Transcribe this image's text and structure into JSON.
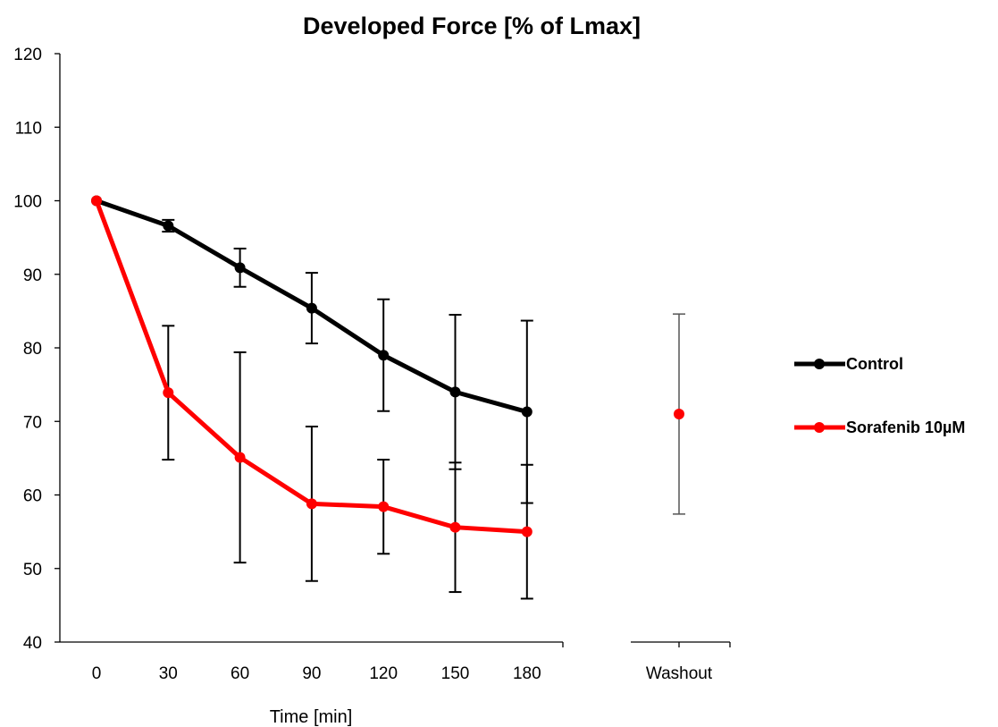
{
  "chart_data": {
    "type": "line",
    "title": "Developed Force [% of Lmax]",
    "xlabel": "Time [min]",
    "ylabel": "",
    "ylim": [
      40,
      120
    ],
    "yticks": [
      40,
      50,
      60,
      70,
      80,
      90,
      100,
      110,
      120
    ],
    "categories": [
      "0",
      "30",
      "60",
      "90",
      "120",
      "150",
      "180"
    ],
    "washout_label": "Washout",
    "legend_position": "right",
    "series": [
      {
        "name": "Control",
        "color": "#000000",
        "values": [
          100,
          96.6,
          90.9,
          85.4,
          79.0,
          74.0,
          71.3
        ],
        "errors": [
          0,
          0.8,
          2.6,
          4.8,
          7.6,
          10.5,
          12.4
        ]
      },
      {
        "name": "Sorafenib 10µM",
        "color": "#ff0000",
        "values": [
          100,
          73.9,
          65.1,
          58.8,
          58.4,
          55.6,
          55.0
        ],
        "errors": [
          0,
          9.1,
          14.3,
          10.5,
          6.4,
          8.8,
          9.1
        ]
      }
    ],
    "washout": {
      "value": 71.0,
      "error_high": 84.6,
      "error_low": 57.4,
      "color": "#ff0000",
      "error_color": "#555555"
    }
  }
}
